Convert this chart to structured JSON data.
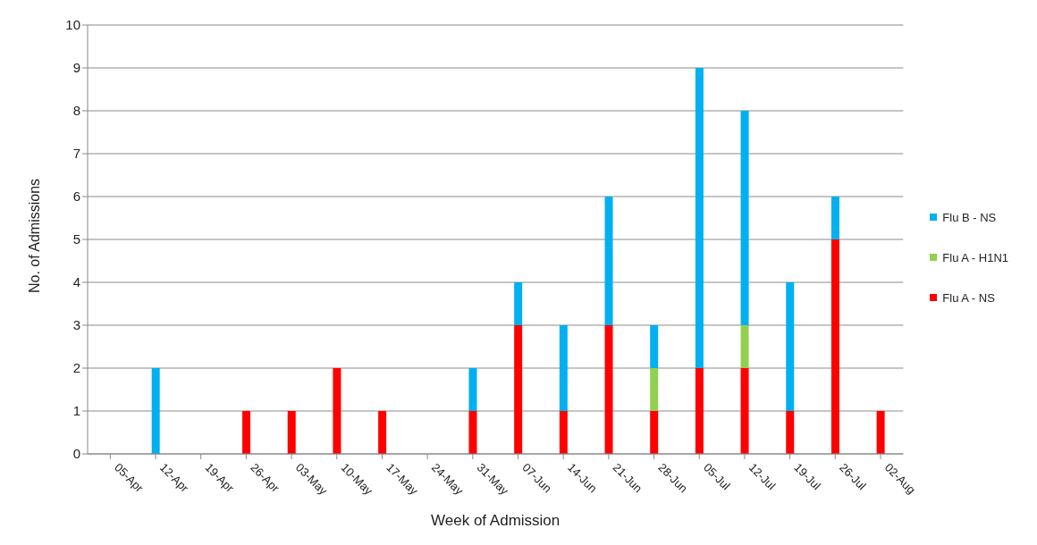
{
  "chart_data": {
    "type": "bar",
    "stacked": true,
    "xlabel": "Week of Admission",
    "ylabel": "No. of Admissions",
    "categories": [
      "05-Apr",
      "12-Apr",
      "19-Apr",
      "26-Apr",
      "03-May",
      "10-May",
      "17-May",
      "24-May",
      "31-May",
      "07-Jun",
      "14-Jun",
      "21-Jun",
      "28-Jun",
      "05-Jul",
      "12-Jul",
      "19-Jul",
      "26-Jul",
      "02-Aug"
    ],
    "series": [
      {
        "name": "Flu A - NS",
        "color": "#ff0000",
        "values": [
          0,
          0,
          0,
          1,
          1,
          2,
          1,
          0,
          1,
          3,
          1,
          3,
          1,
          2,
          2,
          1,
          5,
          1
        ]
      },
      {
        "name": "Flu A - H1N1",
        "color": "#92d050",
        "values": [
          0,
          0,
          0,
          0,
          0,
          0,
          0,
          0,
          0,
          0,
          0,
          0,
          1,
          0,
          1,
          0,
          0,
          0
        ]
      },
      {
        "name": "Flu B - NS",
        "color": "#00b0f0",
        "values": [
          0,
          2,
          0,
          0,
          0,
          0,
          0,
          0,
          1,
          1,
          2,
          3,
          1,
          7,
          5,
          3,
          1,
          0
        ]
      }
    ],
    "ylim": [
      0,
      10
    ],
    "yticks": [
      0,
      1,
      2,
      3,
      4,
      5,
      6,
      7,
      8,
      9,
      10
    ],
    "grid": "y",
    "legend": "right"
  }
}
